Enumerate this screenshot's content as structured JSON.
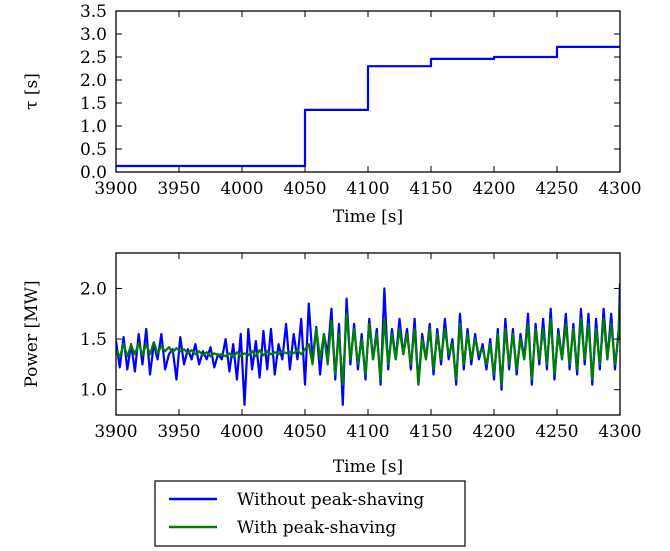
{
  "chart_data": [
    {
      "type": "line",
      "ylabel": "τ [s]",
      "xlabel": "Time [s]",
      "xlim": [
        3900,
        4300
      ],
      "ylim": [
        0.0,
        3.5
      ],
      "xticks": [
        3900,
        3950,
        4000,
        4050,
        4100,
        4150,
        4200,
        4250,
        4300
      ],
      "yticks": [
        0.0,
        0.5,
        1.0,
        1.5,
        2.0,
        2.5,
        3.0,
        3.5
      ],
      "xtick_labels": [
        "3900",
        "3950",
        "4000",
        "4050",
        "4100",
        "4150",
        "4200",
        "4250",
        "4300"
      ],
      "ytick_labels": [
        "0.0",
        "0.5",
        "1.0",
        "1.5",
        "2.0",
        "2.5",
        "3.0",
        "3.5"
      ],
      "grid": false,
      "series": [
        {
          "color": "#0000ff",
          "step": true,
          "x": [
            3900,
            4050,
            4100,
            4150,
            4200,
            4250,
            4300
          ],
          "y": [
            0.13,
            1.35,
            2.3,
            2.46,
            2.5,
            2.72,
            2.72
          ]
        }
      ]
    },
    {
      "type": "line",
      "ylabel": "Power [MW]",
      "xlabel": "Time [s]",
      "xlim": [
        3900,
        4300
      ],
      "ylim": [
        0.75,
        2.35
      ],
      "xticks": [
        3900,
        3950,
        4000,
        4050,
        4100,
        4150,
        4200,
        4250,
        4300
      ],
      "yticks": [
        1.0,
        1.5,
        2.0
      ],
      "xtick_labels": [
        "3900",
        "3950",
        "4000",
        "4050",
        "4100",
        "4150",
        "4200",
        "4250",
        "4300"
      ],
      "ytick_labels": [
        "1.0",
        "1.5",
        "2.0"
      ],
      "grid": false,
      "legend": {
        "placement": "below"
      },
      "series": [
        {
          "name": "Without peak-shaving",
          "color": "#0000ff",
          "x": [
            3900,
            3903,
            3906,
            3909,
            3912,
            3915,
            3918,
            3921,
            3924,
            3927,
            3930,
            3933,
            3936,
            3939,
            3942,
            3945,
            3948,
            3951,
            3954,
            3957,
            3960,
            3963,
            3966,
            3969,
            3972,
            3975,
            3978,
            3981,
            3984,
            3987,
            3990,
            3993,
            3996,
            3999,
            4002,
            4005,
            4008,
            4011,
            4014,
            4017,
            4020,
            4023,
            4026,
            4029,
            4032,
            4035,
            4038,
            4041,
            4044,
            4047,
            4050,
            4053,
            4056,
            4059,
            4062,
            4065,
            4068,
            4071,
            4074,
            4077,
            4080,
            4083,
            4086,
            4089,
            4092,
            4095,
            4098,
            4101,
            4104,
            4107,
            4110,
            4113,
            4116,
            4119,
            4122,
            4125,
            4128,
            4131,
            4134,
            4137,
            4140,
            4143,
            4146,
            4149,
            4152,
            4155,
            4158,
            4161,
            4164,
            4167,
            4170,
            4173,
            4176,
            4179,
            4182,
            4185,
            4188,
            4191,
            4194,
            4197,
            4200,
            4203,
            4206,
            4209,
            4212,
            4215,
            4218,
            4221,
            4224,
            4227,
            4230,
            4233,
            4236,
            4239,
            4242,
            4245,
            4248,
            4251,
            4254,
            4257,
            4260,
            4263,
            4266,
            4269,
            4272,
            4275,
            4278,
            4281,
            4284,
            4287,
            4290,
            4293,
            4296,
            4299,
            4300
          ],
          "y": [
            1.48,
            1.22,
            1.52,
            1.2,
            1.45,
            1.18,
            1.55,
            1.25,
            1.6,
            1.15,
            1.45,
            1.3,
            1.55,
            1.2,
            1.35,
            1.4,
            1.1,
            1.52,
            1.25,
            1.4,
            1.3,
            1.45,
            1.25,
            1.38,
            1.3,
            1.42,
            1.22,
            1.35,
            1.3,
            1.5,
            1.18,
            1.45,
            1.1,
            1.55,
            0.85,
            1.6,
            1.2,
            1.48,
            1.12,
            1.58,
            1.2,
            1.6,
            1.15,
            1.45,
            1.3,
            1.65,
            1.2,
            1.55,
            1.3,
            1.7,
            1.05,
            1.85,
            1.3,
            1.62,
            1.15,
            1.55,
            1.35,
            1.8,
            1.1,
            1.65,
            0.85,
            1.9,
            1.25,
            1.65,
            1.2,
            1.55,
            1.1,
            1.7,
            1.3,
            1.6,
            1.05,
            2.0,
            1.2,
            1.6,
            1.3,
            1.7,
            1.35,
            1.6,
            1.2,
            1.7,
            1.05,
            1.55,
            1.3,
            1.65,
            1.15,
            1.6,
            1.25,
            1.7,
            1.3,
            1.5,
            1.05,
            1.75,
            1.2,
            1.6,
            1.25,
            1.55,
            1.3,
            1.45,
            1.2,
            1.5,
            1.1,
            1.6,
            1.0,
            1.7,
            1.2,
            1.6,
            1.15,
            1.55,
            1.3,
            1.75,
            1.05,
            1.65,
            1.25,
            1.7,
            1.2,
            1.8,
            1.1,
            1.6,
            1.3,
            1.75,
            1.2,
            1.65,
            1.15,
            1.8,
            1.25,
            1.75,
            1.05,
            1.7,
            1.2,
            1.8,
            1.3,
            1.75,
            1.2,
            1.6,
            2.05
          ]
        },
        {
          "name": "With peak-shaving",
          "color": "#008000",
          "x": [
            3900,
            3903,
            3906,
            3909,
            3912,
            3915,
            3918,
            3921,
            3924,
            3927,
            3930,
            3933,
            3936,
            3939,
            3942,
            3945,
            3948,
            3951,
            3954,
            3957,
            3960,
            3963,
            3966,
            3969,
            3972,
            3975,
            3978,
            3981,
            3984,
            3987,
            3990,
            3993,
            3996,
            3999,
            4002,
            4005,
            4008,
            4011,
            4014,
            4017,
            4020,
            4023,
            4026,
            4029,
            4032,
            4035,
            4038,
            4041,
            4044,
            4047,
            4050,
            4053,
            4056,
            4059,
            4062,
            4065,
            4068,
            4071,
            4074,
            4077,
            4080,
            4083,
            4086,
            4089,
            4092,
            4095,
            4098,
            4101,
            4104,
            4107,
            4110,
            4113,
            4116,
            4119,
            4122,
            4125,
            4128,
            4131,
            4134,
            4137,
            4140,
            4143,
            4146,
            4149,
            4152,
            4155,
            4158,
            4161,
            4164,
            4167,
            4170,
            4173,
            4176,
            4179,
            4182,
            4185,
            4188,
            4191,
            4194,
            4197,
            4200,
            4203,
            4206,
            4209,
            4212,
            4215,
            4218,
            4221,
            4224,
            4227,
            4230,
            4233,
            4236,
            4239,
            4242,
            4245,
            4248,
            4251,
            4254,
            4257,
            4260,
            4263,
            4266,
            4269,
            4272,
            4275,
            4278,
            4281,
            4284,
            4287,
            4290,
            4293,
            4296,
            4299,
            4300
          ],
          "y": [
            1.4,
            1.32,
            1.45,
            1.33,
            1.44,
            1.35,
            1.46,
            1.34,
            1.45,
            1.35,
            1.47,
            1.36,
            1.43,
            1.38,
            1.42,
            1.37,
            1.41,
            1.38,
            1.4,
            1.36,
            1.39,
            1.35,
            1.38,
            1.34,
            1.37,
            1.33,
            1.36,
            1.34,
            1.35,
            1.33,
            1.36,
            1.32,
            1.37,
            1.33,
            1.36,
            1.34,
            1.38,
            1.33,
            1.39,
            1.34,
            1.38,
            1.35,
            1.37,
            1.35,
            1.38,
            1.36,
            1.37,
            1.36,
            1.39,
            1.35,
            1.4,
            1.45,
            1.25,
            1.6,
            1.3,
            1.55,
            1.25,
            1.68,
            1.15,
            1.55,
            1.05,
            1.75,
            1.3,
            1.6,
            1.25,
            1.5,
            1.15,
            1.65,
            1.3,
            1.55,
            1.1,
            1.7,
            1.25,
            1.55,
            1.3,
            1.6,
            1.35,
            1.55,
            1.25,
            1.6,
            1.05,
            1.5,
            1.3,
            1.6,
            1.2,
            1.55,
            1.3,
            1.6,
            1.35,
            1.45,
            1.1,
            1.65,
            1.25,
            1.55,
            1.3,
            1.5,
            1.35,
            1.4,
            1.25,
            1.45,
            1.15,
            1.55,
            1.05,
            1.6,
            1.25,
            1.55,
            1.2,
            1.5,
            1.3,
            1.65,
            1.1,
            1.6,
            1.3,
            1.6,
            1.25,
            1.7,
            1.15,
            1.55,
            1.3,
            1.65,
            1.25,
            1.6,
            1.2,
            1.7,
            1.3,
            1.65,
            1.1,
            1.6,
            1.25,
            1.7,
            1.3,
            1.65,
            1.25,
            1.55,
            1.9
          ]
        }
      ]
    }
  ]
}
